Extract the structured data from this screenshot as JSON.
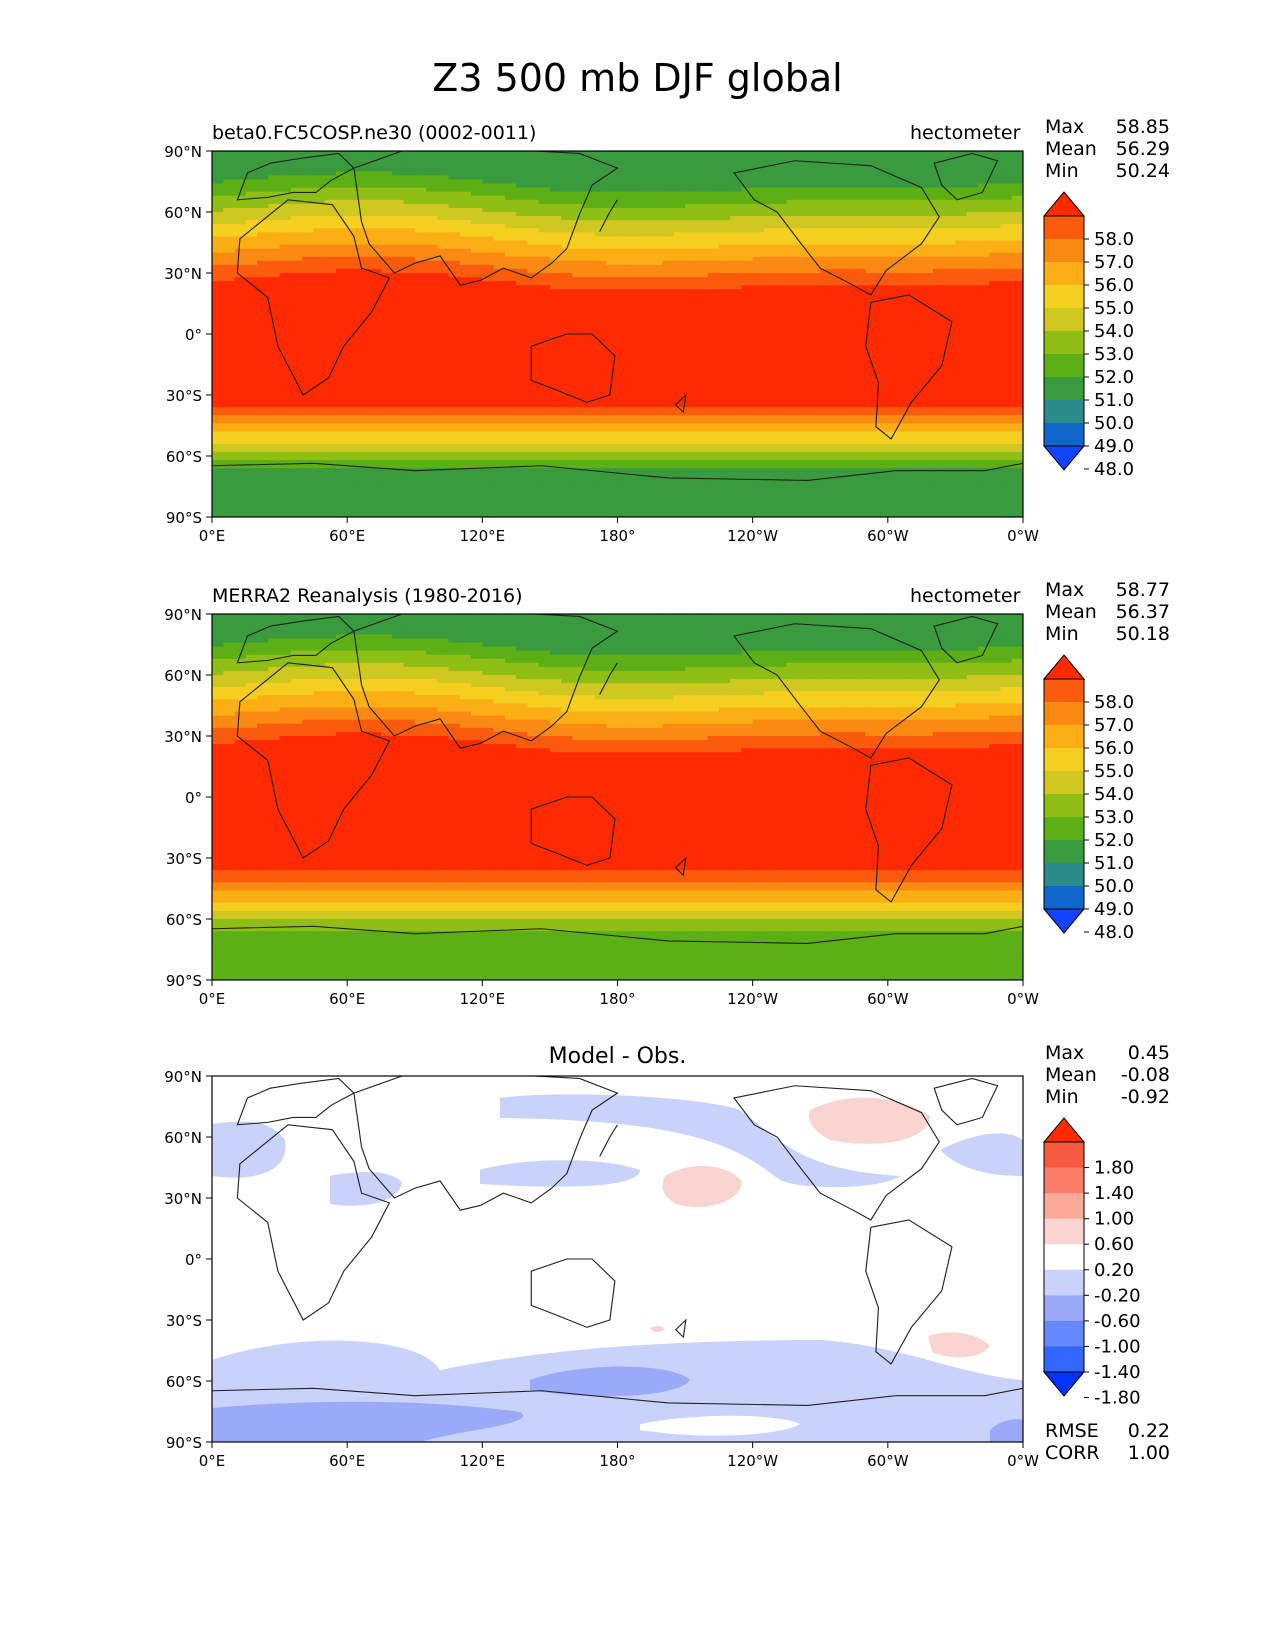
{
  "title": "Z3 500 mb DJF global",
  "axis": {
    "lat_ticks": [
      "90°N",
      "60°N",
      "30°N",
      "0°",
      "30°S",
      "60°S",
      "90°S"
    ],
    "lon_ticks": [
      "0°E",
      "60°E",
      "120°E",
      "180°",
      "120°W",
      "60°W",
      "0°W"
    ]
  },
  "colors": {
    "field_levels": [
      "#1144ff",
      "#1166cc",
      "#2b8a8a",
      "#3a9a3e",
      "#5caf14",
      "#8fbe14",
      "#cfc821",
      "#f5cf1f",
      "#fbaf14",
      "#fb8a12",
      "#fb5b0c",
      "#ff2a00"
    ],
    "diff_levels": [
      "#0033ff",
      "#3366ff",
      "#6688ff",
      "#9aaaf8",
      "#c8d2fa",
      "#ffffff",
      "#fad4d0",
      "#faa898",
      "#f97d68",
      "#f75a40",
      "#ff2a00"
    ]
  },
  "chart_data": [
    {
      "type": "heatmap",
      "name": "test",
      "left_title": "beta0.FC5COSP.ne30 (0002-0011)",
      "units": "hectometer",
      "stats": [
        {
          "label": "Max",
          "value": "58.85"
        },
        {
          "label": "Mean",
          "value": "56.29"
        },
        {
          "label": "Min",
          "value": "50.24"
        }
      ],
      "colorbar_labels": [
        "58.0",
        "57.0",
        "56.0",
        "55.0",
        "54.0",
        "53.0",
        "52.0",
        "51.0",
        "50.0",
        "49.0",
        "48.0"
      ],
      "levels": [
        48,
        49,
        50,
        51,
        52,
        53,
        54,
        55,
        56,
        57,
        58
      ],
      "xlim": [
        0,
        360
      ],
      "ylim": [
        -90,
        90
      ]
    },
    {
      "type": "heatmap",
      "name": "reference",
      "left_title": "MERRA2 Reanalysis (1980-2016)",
      "units": "hectometer",
      "stats": [
        {
          "label": "Max",
          "value": "58.77"
        },
        {
          "label": "Mean",
          "value": "56.37"
        },
        {
          "label": "Min",
          "value": "50.18"
        }
      ],
      "colorbar_labels": [
        "58.0",
        "57.0",
        "56.0",
        "55.0",
        "54.0",
        "53.0",
        "52.0",
        "51.0",
        "50.0",
        "49.0",
        "48.0"
      ],
      "levels": [
        48,
        49,
        50,
        51,
        52,
        53,
        54,
        55,
        56,
        57,
        58
      ],
      "xlim": [
        0,
        360
      ],
      "ylim": [
        -90,
        90
      ]
    },
    {
      "type": "heatmap",
      "name": "difference",
      "center_title": "Model - Obs.",
      "stats": [
        {
          "label": "Max",
          "value": "0.45"
        },
        {
          "label": "Mean",
          "value": "-0.08"
        },
        {
          "label": "Min",
          "value": "-0.92"
        }
      ],
      "colorbar_labels": [
        "1.80",
        "1.40",
        "1.00",
        "0.60",
        "0.20",
        "-0.20",
        "-0.60",
        "-1.00",
        "-1.40",
        "-1.80"
      ],
      "levels": [
        -1.8,
        -1.4,
        -1.0,
        -0.6,
        -0.2,
        0.2,
        0.6,
        1.0,
        1.4,
        1.8
      ],
      "metrics": [
        {
          "label": "RMSE",
          "value": "0.22"
        },
        {
          "label": "CORR",
          "value": "1.00"
        }
      ],
      "xlim": [
        0,
        360
      ],
      "ylim": [
        -90,
        90
      ]
    }
  ]
}
